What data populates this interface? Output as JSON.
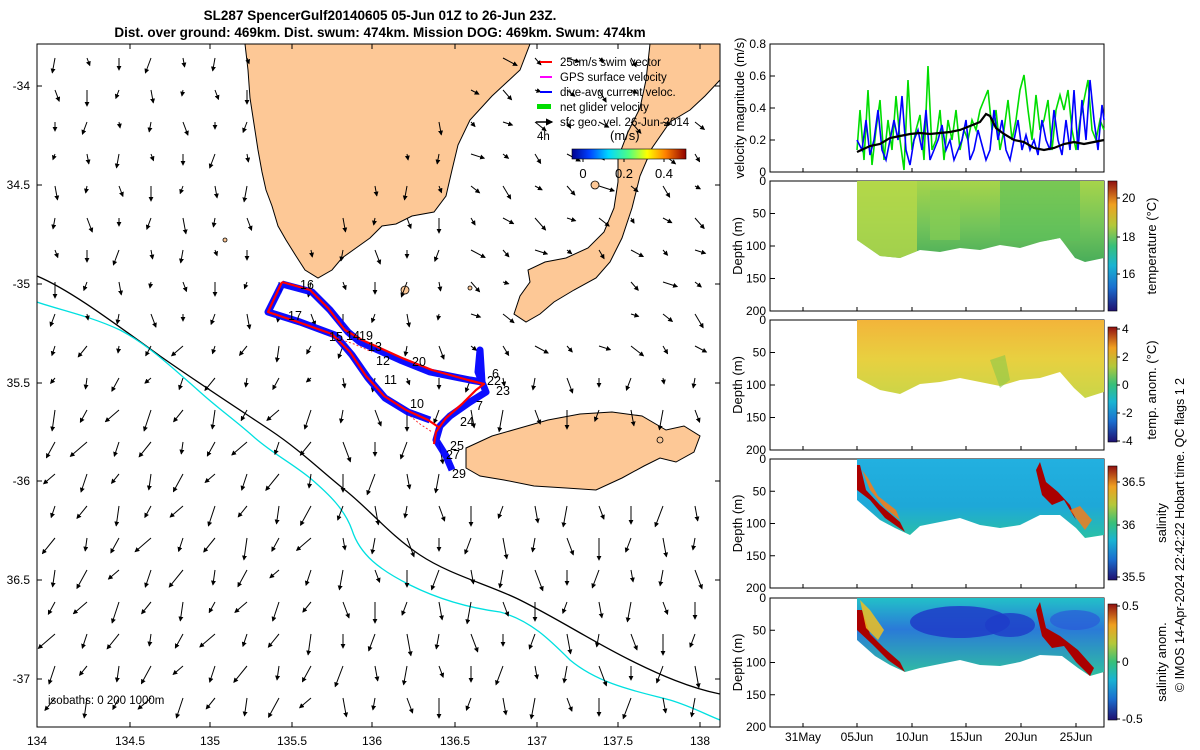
{
  "header": {
    "title_line1": "SL287 SpencerGulf20140605 05-Jun 01Z to 26-Jun 23Z.",
    "title_line2": "Dist. over ground: 469km. Dist. swum: 474km. Mission DOG: 469km. Swum: 474km"
  },
  "map": {
    "lon_ticks": [
      "134",
      "134.5",
      "135",
      "135.5",
      "136",
      "136.5",
      "137",
      "137.5",
      "138"
    ],
    "lat_ticks": [
      "-34",
      "34.5",
      "-35",
      "35.5",
      "-36",
      "36.5",
      "-37"
    ],
    "isobath_label": "isobaths: 0   200  1000m",
    "waypoints": [
      {
        "id": "16"
      },
      {
        "id": "15"
      },
      {
        "id": "17"
      },
      {
        "id": "14"
      },
      {
        "id": "19"
      },
      {
        "id": "13"
      },
      {
        "id": "12"
      },
      {
        "id": "20"
      },
      {
        "id": "11"
      },
      {
        "id": "6"
      },
      {
        "id": "22"
      },
      {
        "id": "23"
      },
      {
        "id": "10"
      },
      {
        "id": "7"
      },
      {
        "id": "24"
      },
      {
        "id": "25"
      },
      {
        "id": "27"
      },
      {
        "id": "29"
      }
    ],
    "legend": {
      "items": [
        {
          "label": "25cm/s swim vector",
          "color": "#ff0000"
        },
        {
          "label": "GPS surface velocity",
          "color": "#ff00ff"
        },
        {
          "label": "dive-avg current veloc.",
          "color": "#0000ff"
        },
        {
          "label": "net glider velocity",
          "color": "#00dd00"
        },
        {
          "label": "sfc geo. vel. 26-Jun-2014",
          "color": "#000000"
        }
      ],
      "time_tag": "4h"
    },
    "colorbar": {
      "label": "(m/s)",
      "ticks": [
        "0",
        "0.2",
        "0.4"
      ]
    },
    "colors": {
      "land": "#fdc896",
      "isobath_200": "#00e0e0",
      "isobath_1000": "#000000",
      "track_red": "#ff0000",
      "track_blue": "#0000ff"
    }
  },
  "panels": {
    "velocity": {
      "ylabel": "velocity magnitude (m/s)",
      "yticks": [
        "0",
        "0.2",
        "0.4",
        "0.6",
        "0.8"
      ]
    },
    "temperature": {
      "ylabel": "Depth (m)",
      "cblabel": "temperature (°C)",
      "cbticks": [
        "20",
        "18",
        "16"
      ]
    },
    "temp_anom": {
      "ylabel": "Depth (m)",
      "cblabel": "temp. anom. (°C)",
      "cbticks": [
        "4",
        "2",
        "0",
        "-2",
        "-4"
      ]
    },
    "salinity": {
      "ylabel": "Depth (m)",
      "cblabel": "salinity",
      "cbticks": [
        "36.5",
        "36",
        "35.5"
      ]
    },
    "sal_anom": {
      "ylabel": "Depth (m)",
      "cblabel": "salinity anom.",
      "cbticks": [
        "0.5",
        "0",
        "-0.5"
      ]
    },
    "depth_ticks": [
      "0",
      "50",
      "100",
      "150",
      "200"
    ],
    "time_ticks": [
      "31May",
      "05Jun",
      "10Jun",
      "15Jun",
      "20Jun",
      "25Jun"
    ],
    "footer": "© IMOS 14-Apr-2024 22:42:22 Hobart time. QC flags 1  2"
  }
}
